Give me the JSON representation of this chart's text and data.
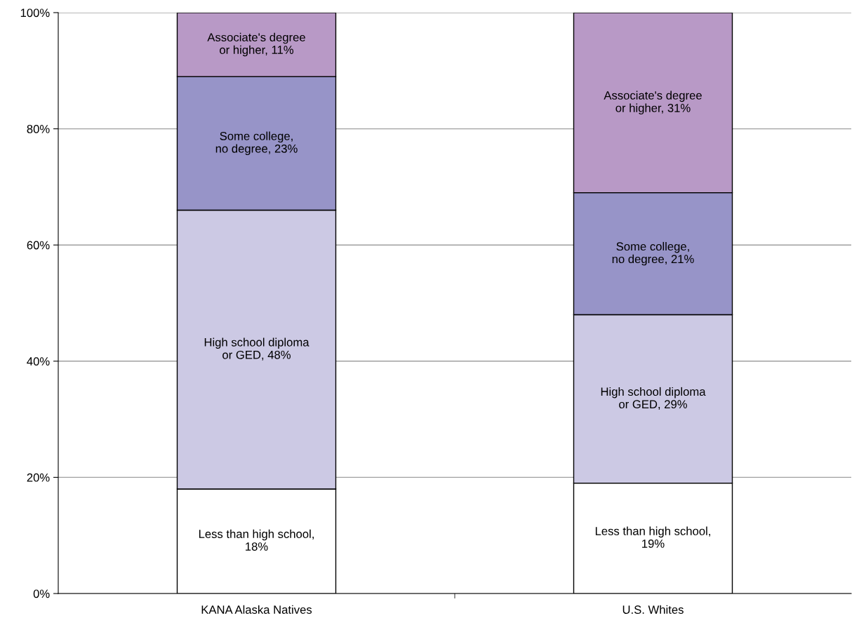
{
  "chart_data": {
    "type": "bar",
    "stacked": true,
    "categories": [
      "KANA Alaska Natives",
      "U.S. Whites"
    ],
    "series": [
      {
        "color": "#ffffff",
        "values": [
          18,
          19
        ],
        "value_labels": [
          "Less than high school,\n18%",
          "Less than high school,\n19%"
        ]
      },
      {
        "color": "#ccc9e4",
        "values": [
          48,
          29
        ],
        "value_labels": [
          "High school diploma\nor GED, 48%",
          "High school diploma\nor GED, 29%"
        ]
      },
      {
        "color": "#9794c8",
        "values": [
          23,
          21
        ],
        "value_labels": [
          "Some college,\nno degree, 23%",
          "Some college,\nno degree, 21%"
        ]
      },
      {
        "color": "#b899c6",
        "values": [
          11,
          31
        ],
        "value_labels": [
          "Associate's degree\nor higher, 11%",
          "Associate's degree\nor higher, 31%"
        ]
      }
    ],
    "ylim": [
      0,
      100
    ],
    "yticks": [
      {
        "value": 0,
        "label": "0%"
      },
      {
        "value": 20,
        "label": "20%"
      },
      {
        "value": 40,
        "label": "40%"
      },
      {
        "value": 60,
        "label": "60%"
      },
      {
        "value": 80,
        "label": "80%"
      },
      {
        "value": 100,
        "label": "100%"
      }
    ],
    "grid": "y",
    "legend": false
  }
}
